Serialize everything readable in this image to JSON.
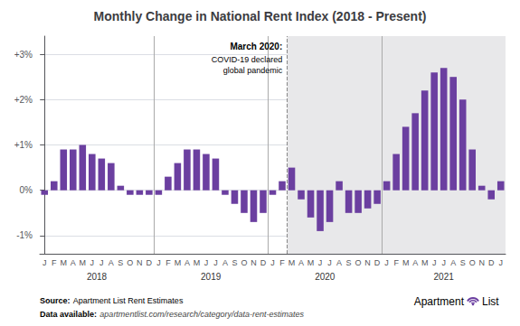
{
  "chart_data": {
    "type": "bar",
    "title": "Monthly Change in National Rent Index (2018 - Present)",
    "categories": [
      "J",
      "F",
      "M",
      "A",
      "M",
      "J",
      "J",
      "A",
      "S",
      "O",
      "N",
      "D",
      "J",
      "F",
      "M",
      "A",
      "M",
      "J",
      "J",
      "A",
      "S",
      "O",
      "N",
      "D",
      "J",
      "F",
      "M",
      "A",
      "M",
      "J",
      "J",
      "A",
      "S",
      "O",
      "N",
      "D",
      "J",
      "F",
      "M",
      "A",
      "M",
      "J",
      "J",
      "A",
      "S",
      "O",
      "N",
      "D",
      "J"
    ],
    "values": [
      -0.001,
      0.002,
      0.009,
      0.009,
      0.01,
      0.008,
      0.007,
      0.006,
      0.001,
      -0.001,
      -0.001,
      -0.001,
      -0.001,
      0.003,
      0.006,
      0.009,
      0.009,
      0.008,
      0.007,
      -0.001,
      -0.003,
      -0.005,
      -0.007,
      -0.005,
      -0.001,
      0.002,
      0.005,
      -0.002,
      -0.006,
      -0.009,
      -0.007,
      0.002,
      -0.005,
      -0.005,
      -0.004,
      -0.003,
      0.002,
      0.008,
      0.014,
      0.017,
      0.022,
      0.026,
      0.027,
      0.025,
      0.02,
      0.009,
      0.001,
      -0.002,
      0.002
    ],
    "color": "#6B3FA0",
    "ylim": [
      -0.014,
      0.034
    ],
    "yticks": [
      {
        "value": -0.01,
        "label": "-1%"
      },
      {
        "value": 0.0,
        "label": "0%"
      },
      {
        "value": 0.01,
        "label": "+1%"
      },
      {
        "value": 0.02,
        "label": "+2%"
      },
      {
        "value": 0.03,
        "label": "+3%"
      }
    ],
    "grid": true,
    "shade": {
      "from": 25.5,
      "to": 48.5,
      "color": "#E8E8EA"
    },
    "vlines": [
      {
        "x": 11.5,
        "color": "#aaaaaa"
      },
      {
        "x": 23.5,
        "color": "#aaaaaa"
      },
      {
        "x": 35.5,
        "color": "#aaaaaa"
      },
      {
        "x": 25.5,
        "color": "#888888",
        "line_style": "dashed"
      }
    ],
    "year_labels": [
      {
        "text": "2018",
        "x": 5.5
      },
      {
        "text": "2019",
        "x": 17.5
      },
      {
        "text": "2020",
        "x": 29.5
      },
      {
        "text": "2021",
        "x": 42.0
      }
    ],
    "annotation": {
      "x": 25.5,
      "bold": "March 2020:",
      "text": "COVID-19 declared\nglobal pandemic"
    },
    "source": {
      "bold": "Source:",
      "text": "Apartment List Rent Estimates"
    },
    "data_source": {
      "bold": "Data available:",
      "text": "apartmentlist.com/research/category/data-rent-estimates"
    },
    "logo": [
      "Apartment",
      "List"
    ]
  }
}
